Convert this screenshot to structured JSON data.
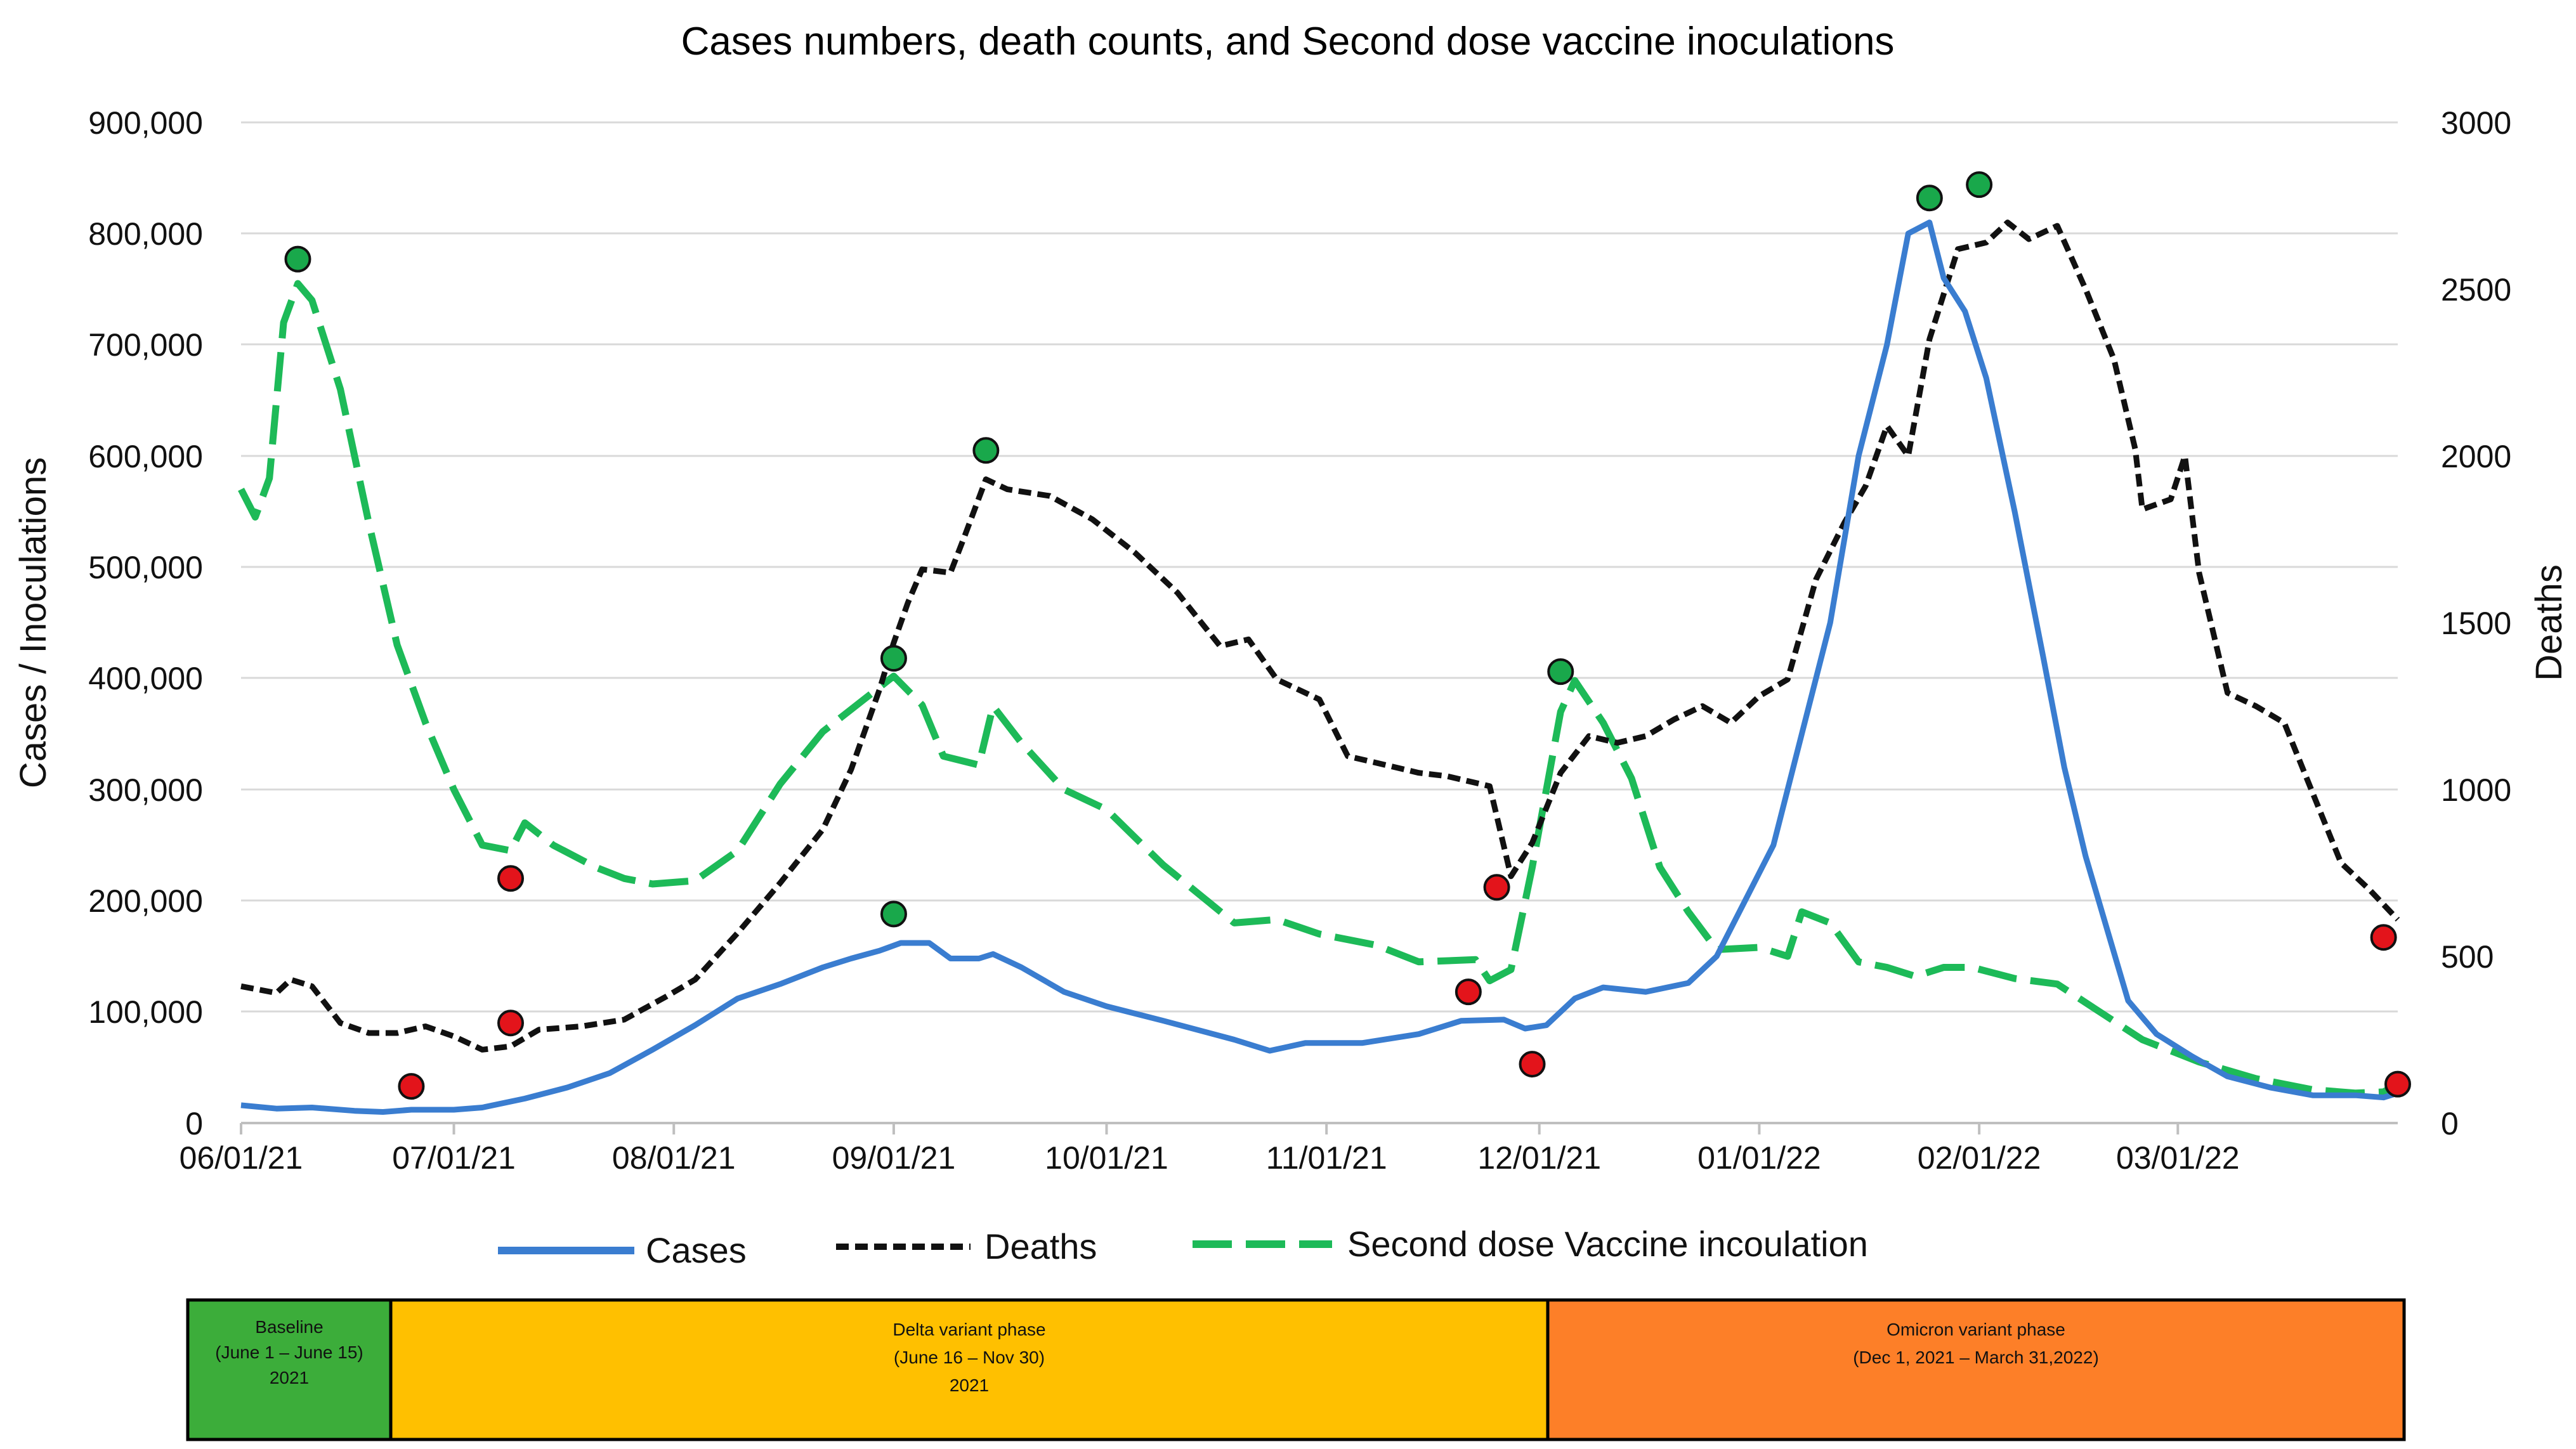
{
  "chart_data": {
    "type": "line",
    "title": "Cases numbers, death counts, and Second dose vaccine inoculations",
    "ylabel": "Cases / Inoculations",
    "y2label": "Deaths",
    "ylim": [
      0,
      900000
    ],
    "y2lim": [
      0,
      3000
    ],
    "yticks": [
      "900,000",
      "800,000",
      "700,000",
      "600,000",
      "500,000",
      "400,000",
      "300,000",
      "200,000",
      "100,000",
      "0"
    ],
    "y2ticks": [
      "3000",
      "2500",
      "2000",
      "1500",
      "1000",
      "500",
      "0"
    ],
    "xlim": [
      0,
      304
    ],
    "xticks": [
      {
        "label": "06/01/21",
        "day": 0
      },
      {
        "label": "07/01/21",
        "day": 30
      },
      {
        "label": "08/01/21",
        "day": 61
      },
      {
        "label": "09/01/21",
        "day": 92
      },
      {
        "label": "10/01/21",
        "day": 122
      },
      {
        "label": "11/01/21",
        "day": 153
      },
      {
        "label": "12/01/21",
        "day": 183
      },
      {
        "label": "01/01/22",
        "day": 214
      },
      {
        "label": "02/01/22",
        "day": 245
      },
      {
        "label": "03/01/22",
        "day": 273
      }
    ],
    "series": [
      {
        "name": "Cases",
        "axis": "left",
        "color": "#3a7dd0",
        "style": "solid",
        "points": [
          [
            0,
            16000
          ],
          [
            5,
            13000
          ],
          [
            10,
            14000
          ],
          [
            16,
            11000
          ],
          [
            20,
            10000
          ],
          [
            24,
            12000
          ],
          [
            30,
            12000
          ],
          [
            34,
            14000
          ],
          [
            40,
            22000
          ],
          [
            46,
            32000
          ],
          [
            52,
            45000
          ],
          [
            58,
            66000
          ],
          [
            64,
            88000
          ],
          [
            70,
            112000
          ],
          [
            76,
            125000
          ],
          [
            82,
            140000
          ],
          [
            86,
            148000
          ],
          [
            90,
            155000
          ],
          [
            93,
            162000
          ],
          [
            97,
            162000
          ],
          [
            100,
            148000
          ],
          [
            104,
            148000
          ],
          [
            106,
            152000
          ],
          [
            110,
            140000
          ],
          [
            116,
            118000
          ],
          [
            122,
            105000
          ],
          [
            130,
            92000
          ],
          [
            140,
            75000
          ],
          [
            145,
            65000
          ],
          [
            150,
            72000
          ],
          [
            158,
            72000
          ],
          [
            166,
            80000
          ],
          [
            172,
            92000
          ],
          [
            178,
            93000
          ],
          [
            181,
            85000
          ],
          [
            184,
            88000
          ],
          [
            188,
            112000
          ],
          [
            192,
            122000
          ],
          [
            198,
            118000
          ],
          [
            204,
            126000
          ],
          [
            208,
            150000
          ],
          [
            212,
            200000
          ],
          [
            216,
            250000
          ],
          [
            220,
            350000
          ],
          [
            224,
            450000
          ],
          [
            228,
            600000
          ],
          [
            232,
            700000
          ],
          [
            235,
            800000
          ],
          [
            238,
            810000
          ],
          [
            240,
            760000
          ],
          [
            243,
            730000
          ],
          [
            246,
            670000
          ],
          [
            250,
            550000
          ],
          [
            254,
            420000
          ],
          [
            257,
            320000
          ],
          [
            260,
            240000
          ],
          [
            263,
            175000
          ],
          [
            266,
            110000
          ],
          [
            270,
            80000
          ],
          [
            275,
            60000
          ],
          [
            280,
            42000
          ],
          [
            286,
            32000
          ],
          [
            292,
            25000
          ],
          [
            298,
            25000
          ],
          [
            302,
            23000
          ],
          [
            304,
            27000
          ]
        ]
      },
      {
        "name": "Deaths",
        "axis": "right",
        "color": "#111111",
        "style": "dashed",
        "points": [
          [
            0,
            410
          ],
          [
            5,
            390
          ],
          [
            7,
            430
          ],
          [
            10,
            410
          ],
          [
            14,
            300
          ],
          [
            18,
            270
          ],
          [
            22,
            270
          ],
          [
            26,
            290
          ],
          [
            30,
            260
          ],
          [
            34,
            220
          ],
          [
            38,
            230
          ],
          [
            42,
            280
          ],
          [
            48,
            290
          ],
          [
            54,
            310
          ],
          [
            60,
            380
          ],
          [
            64,
            430
          ],
          [
            70,
            570
          ],
          [
            76,
            720
          ],
          [
            82,
            880
          ],
          [
            86,
            1060
          ],
          [
            90,
            1300
          ],
          [
            92,
            1440
          ],
          [
            94,
            1560
          ],
          [
            96,
            1660
          ],
          [
            100,
            1650
          ],
          [
            102,
            1760
          ],
          [
            105,
            1930
          ],
          [
            108,
            1900
          ],
          [
            114,
            1880
          ],
          [
            120,
            1810
          ],
          [
            126,
            1710
          ],
          [
            132,
            1590
          ],
          [
            138,
            1430
          ],
          [
            142,
            1450
          ],
          [
            146,
            1330
          ],
          [
            152,
            1270
          ],
          [
            156,
            1100
          ],
          [
            160,
            1080
          ],
          [
            166,
            1050
          ],
          [
            170,
            1040
          ],
          [
            176,
            1010
          ],
          [
            179,
            740
          ],
          [
            182,
            840
          ],
          [
            186,
            1050
          ],
          [
            190,
            1160
          ],
          [
            194,
            1140
          ],
          [
            198,
            1160
          ],
          [
            202,
            1210
          ],
          [
            206,
            1250
          ],
          [
            210,
            1200
          ],
          [
            214,
            1280
          ],
          [
            218,
            1330
          ],
          [
            222,
            1630
          ],
          [
            226,
            1800
          ],
          [
            229,
            1910
          ],
          [
            232,
            2090
          ],
          [
            235,
            2000
          ],
          [
            238,
            2350
          ],
          [
            242,
            2620
          ],
          [
            246,
            2640
          ],
          [
            249,
            2700
          ],
          [
            252,
            2650
          ],
          [
            256,
            2690
          ],
          [
            260,
            2500
          ],
          [
            264,
            2290
          ],
          [
            267,
            2020
          ],
          [
            268,
            1840
          ],
          [
            272,
            1870
          ],
          [
            274,
            2000
          ],
          [
            276,
            1650
          ],
          [
            280,
            1290
          ],
          [
            284,
            1250
          ],
          [
            288,
            1200
          ],
          [
            292,
            990
          ],
          [
            296,
            780
          ],
          [
            300,
            700
          ],
          [
            304,
            610
          ]
        ]
      },
      {
        "name": "Second dose Vaccine incoulation",
        "axis": "left",
        "color": "#1dba58",
        "style": "longdash",
        "points": [
          [
            0,
            570000
          ],
          [
            2,
            545000
          ],
          [
            4,
            580000
          ],
          [
            6,
            720000
          ],
          [
            8,
            755000
          ],
          [
            10,
            740000
          ],
          [
            14,
            660000
          ],
          [
            18,
            540000
          ],
          [
            22,
            430000
          ],
          [
            26,
            360000
          ],
          [
            30,
            300000
          ],
          [
            34,
            250000
          ],
          [
            38,
            245000
          ],
          [
            40,
            270000
          ],
          [
            44,
            250000
          ],
          [
            50,
            230000
          ],
          [
            54,
            220000
          ],
          [
            58,
            215000
          ],
          [
            64,
            218000
          ],
          [
            70,
            245000
          ],
          [
            76,
            305000
          ],
          [
            82,
            352000
          ],
          [
            88,
            382000
          ],
          [
            92,
            402000
          ],
          [
            96,
            376000
          ],
          [
            99,
            330000
          ],
          [
            104,
            322000
          ],
          [
            106,
            375000
          ],
          [
            110,
            342000
          ],
          [
            116,
            300000
          ],
          [
            122,
            282000
          ],
          [
            130,
            232000
          ],
          [
            140,
            180000
          ],
          [
            146,
            183000
          ],
          [
            152,
            170000
          ],
          [
            160,
            160000
          ],
          [
            166,
            145000
          ],
          [
            174,
            147000
          ],
          [
            176,
            128000
          ],
          [
            179,
            138000
          ],
          [
            182,
            230000
          ],
          [
            186,
            370000
          ],
          [
            188,
            398000
          ],
          [
            192,
            360000
          ],
          [
            196,
            310000
          ],
          [
            200,
            230000
          ],
          [
            204,
            190000
          ],
          [
            208,
            156000
          ],
          [
            214,
            158000
          ],
          [
            218,
            150000
          ],
          [
            220,
            190000
          ],
          [
            224,
            180000
          ],
          [
            228,
            145000
          ],
          [
            232,
            140000
          ],
          [
            236,
            132000
          ],
          [
            240,
            140000
          ],
          [
            244,
            140000
          ],
          [
            250,
            130000
          ],
          [
            256,
            125000
          ],
          [
            262,
            100000
          ],
          [
            268,
            75000
          ],
          [
            276,
            55000
          ],
          [
            284,
            40000
          ],
          [
            292,
            30000
          ],
          [
            298,
            27000
          ],
          [
            302,
            28000
          ],
          [
            304,
            35000
          ]
        ]
      }
    ],
    "peak_markers": [
      {
        "day": 8,
        "value": 777000
      },
      {
        "day": 92,
        "value": 418000
      },
      {
        "day": 92,
        "value": 188000
      },
      {
        "day": 105,
        "value": 605000
      },
      {
        "day": 186,
        "value": 406000
      },
      {
        "day": 238,
        "value": 832000
      },
      {
        "day": 245,
        "value": 844000
      }
    ],
    "trough_markers": [
      {
        "day": 24,
        "value": 33000
      },
      {
        "day": 38,
        "value": 220000
      },
      {
        "day": 38,
        "value": 90000
      },
      {
        "day": 173,
        "value": 118000
      },
      {
        "day": 177,
        "value": 212000
      },
      {
        "day": 182,
        "value": 53000
      },
      {
        "day": 302,
        "value": 167000
      },
      {
        "day": 304,
        "value": 35000
      }
    ],
    "marker_colors": {
      "peak": "#19a84b",
      "trough": "#e3141b"
    },
    "legend": [
      {
        "label": "Cases",
        "color": "#3a7dd0",
        "style": "solid"
      },
      {
        "label": "Deaths",
        "color": "#111111",
        "style": "dashed"
      },
      {
        "label": "Second dose Vaccine incoulation",
        "color": "#1dba58",
        "style": "longdash"
      }
    ],
    "phases": [
      {
        "lines": [
          "Baseline",
          "(June 1 – June 15)",
          "2021"
        ],
        "color": "#3cad3a"
      },
      {
        "lines": [
          "Delta variant phase",
          "(June 16 – Nov 30)",
          "2021"
        ],
        "color": "#ffc000"
      },
      {
        "lines": [
          "Omicron variant phase",
          "(Dec 1, 2021 – March 31,2022)"
        ],
        "color": "#fd7f28"
      }
    ]
  }
}
